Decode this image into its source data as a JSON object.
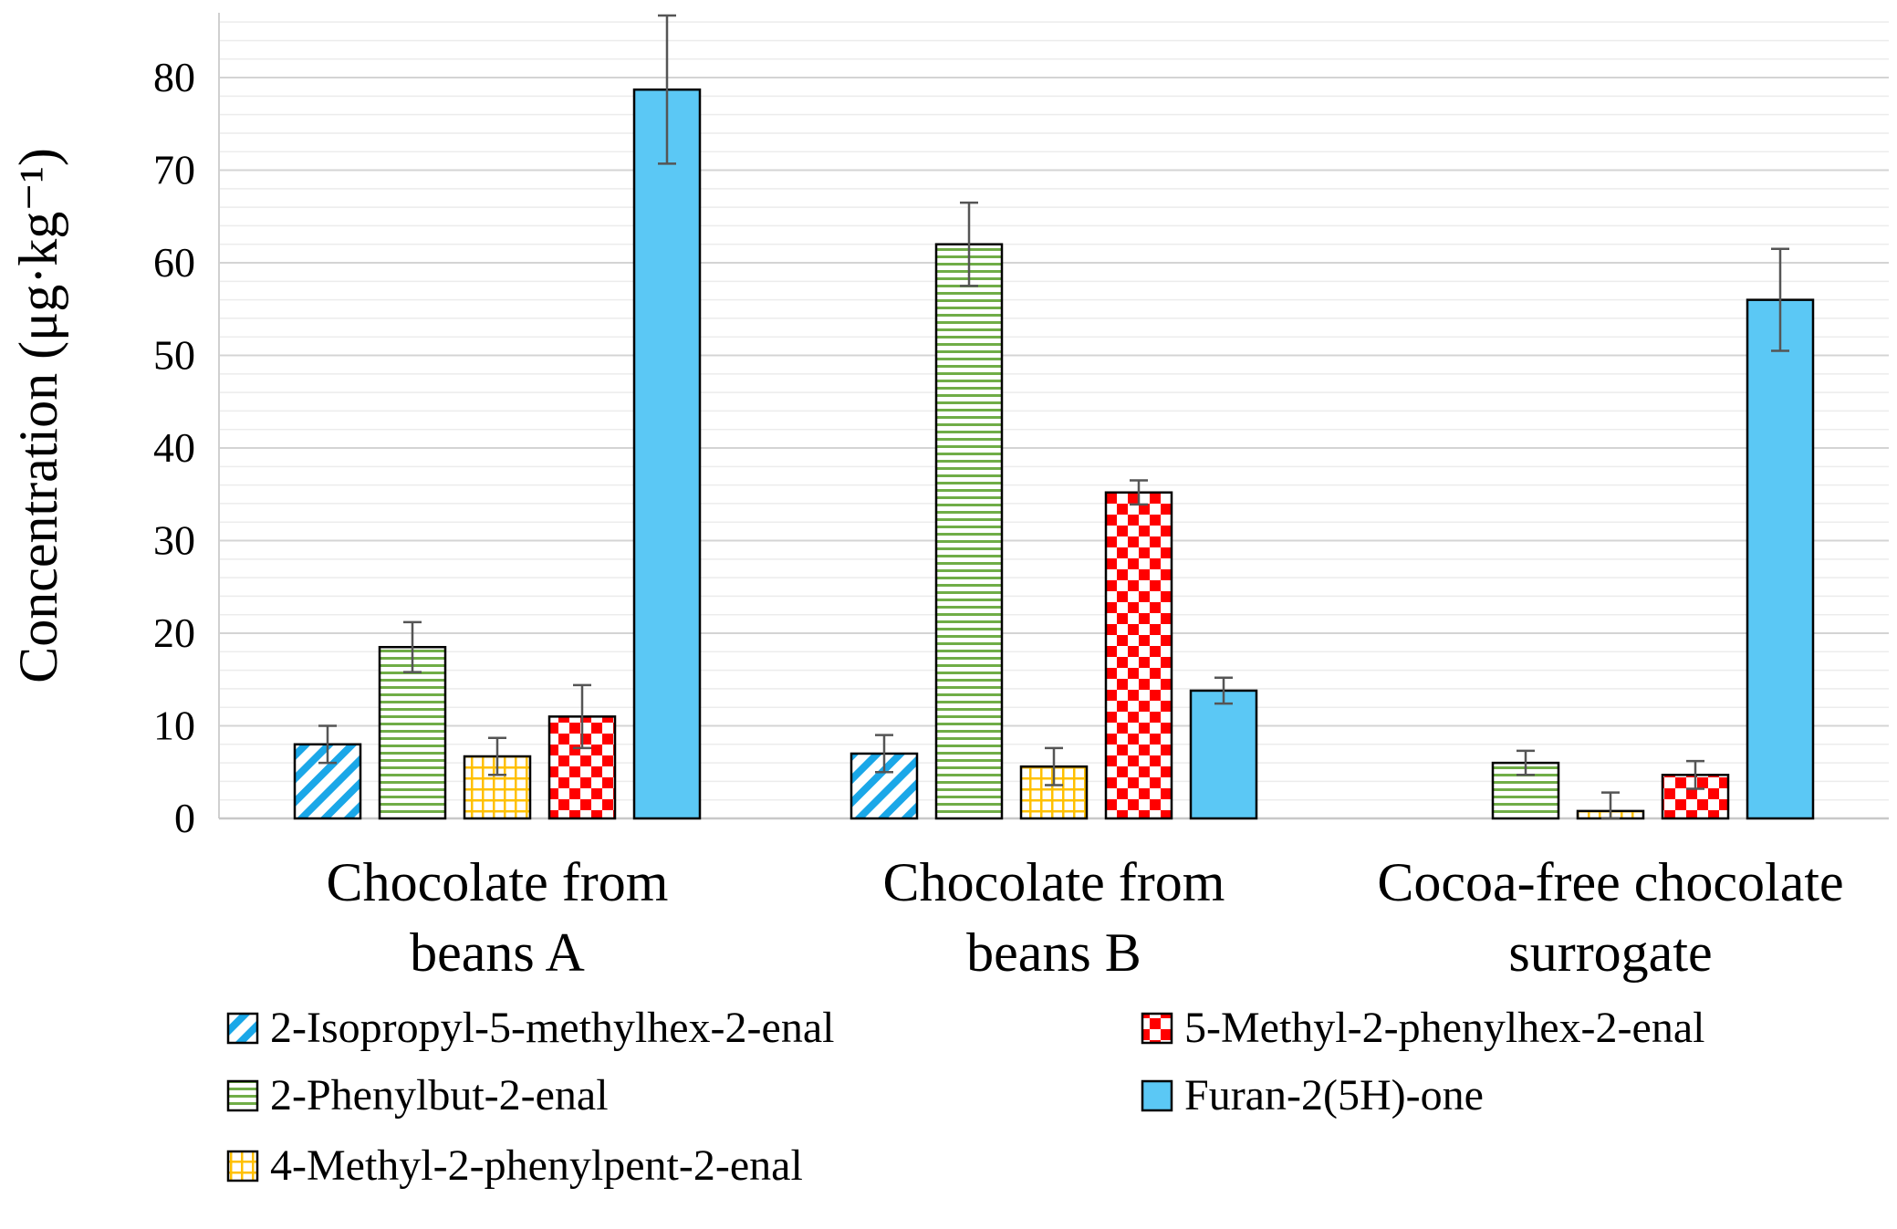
{
  "chart_data": {
    "type": "bar",
    "title": "",
    "xlabel": "",
    "ylabel": "Concentration (μg·kg⁻¹)",
    "ylim": [
      0,
      87
    ],
    "yticks": [
      0,
      10,
      20,
      30,
      40,
      50,
      60,
      70,
      80
    ],
    "grid": true,
    "legend_position": "bottom",
    "categories": [
      [
        "Chocolate from",
        "beans A"
      ],
      [
        "Chocolate from",
        "beans B"
      ],
      [
        "Cocoa-free chocolate",
        "surrogate"
      ]
    ],
    "series": [
      {
        "name": "2-Isopropyl-5-methylhex-2-enal",
        "color": "#1aa7e8",
        "pattern": "diagonal",
        "values": [
          8.0,
          7.0,
          null
        ],
        "errors": [
          2.0,
          2.0,
          null
        ]
      },
      {
        "name": "2-Phenylbut-2-enal",
        "color": "#70ad47",
        "pattern": "horizontal-lines",
        "values": [
          18.5,
          62.0,
          6.0
        ],
        "errors": [
          2.7,
          4.5,
          1.3
        ]
      },
      {
        "name": "4-Methyl-2-phenylpent-2-enal",
        "color": "#ffc000",
        "pattern": "grid",
        "values": [
          6.7,
          5.6,
          0.8
        ],
        "errors": [
          2.0,
          2.0,
          2.0
        ]
      },
      {
        "name": "5-Methyl-2-phenylhex-2-enal",
        "color": "#ff0000",
        "pattern": "checker",
        "values": [
          11.0,
          35.2,
          4.7
        ],
        "errors": [
          3.4,
          1.3,
          1.5
        ]
      },
      {
        "name": "Furan-2(5H)-one",
        "color": "#5bc8f5",
        "pattern": "solid",
        "values": [
          78.7,
          13.8,
          56.0
        ],
        "errors": [
          8.0,
          1.4,
          5.5
        ]
      }
    ]
  }
}
